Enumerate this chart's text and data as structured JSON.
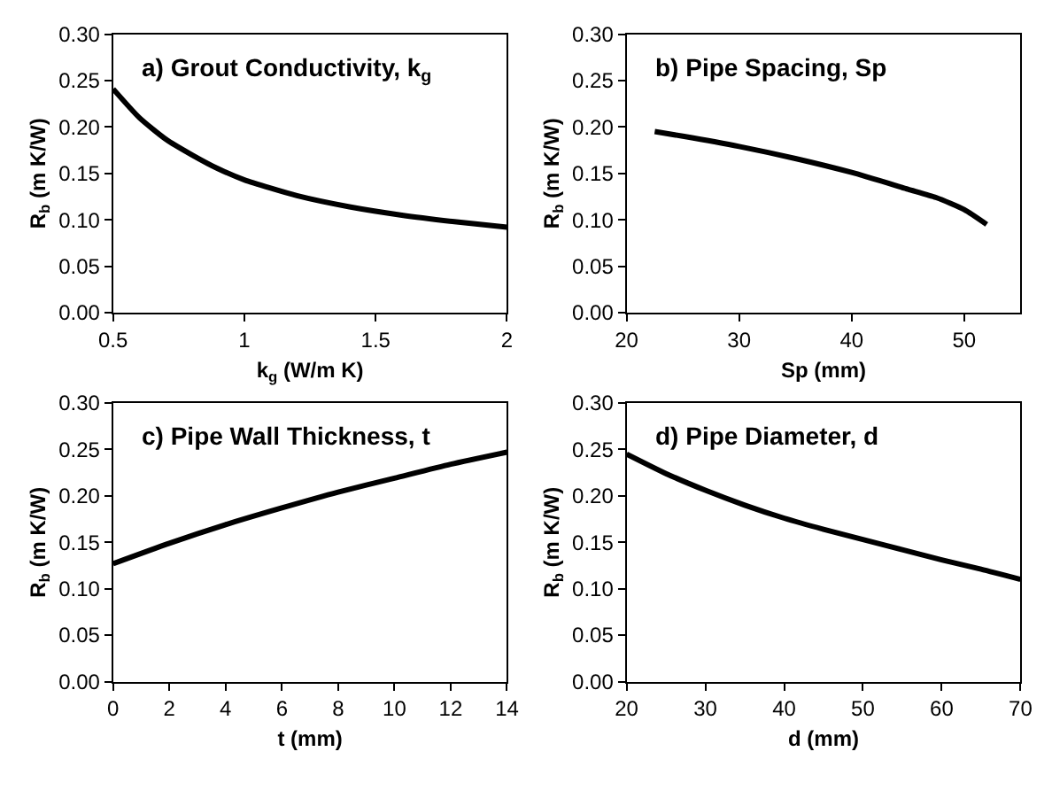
{
  "chart_data": [
    {
      "type": "line",
      "title": "a) Grout Conductivity, k$_{g}$",
      "xlabel": "k$_{g}$ (W/m K)",
      "ylabel": "R$_{b}$ (m K/W)",
      "x": [
        0.5,
        0.6,
        0.7,
        0.8,
        0.9,
        1.0,
        1.2,
        1.4,
        1.6,
        1.8,
        2.0
      ],
      "values": [
        0.241,
        0.21,
        0.187,
        0.17,
        0.155,
        0.143,
        0.126,
        0.114,
        0.105,
        0.098,
        0.092
      ],
      "color": "#000000",
      "xlim": [
        0.5,
        2
      ],
      "xticks": [
        0.5,
        1,
        1.5,
        2
      ],
      "ylim": [
        0,
        0.3
      ],
      "yticks": [
        {
          "value": 0,
          "label": "0.00"
        },
        {
          "value": 0.05,
          "label": "0.05"
        },
        {
          "value": 0.1,
          "label": "0.10"
        },
        {
          "value": 0.15,
          "label": "0.15"
        },
        {
          "value": 0.2,
          "label": "0.20"
        },
        {
          "value": 0.25,
          "label": "0.25"
        },
        {
          "value": 0.3,
          "label": "0.30"
        }
      ],
      "grid": false
    },
    {
      "type": "line",
      "title": "b) Pipe Spacing, Sp",
      "xlabel": "Sp (mm)",
      "ylabel": "R$_{b}$ (m K/W)",
      "x": [
        22.5,
        25,
        30,
        35,
        40,
        45,
        47.5,
        50,
        52
      ],
      "values": [
        0.195,
        0.19,
        0.179,
        0.166,
        0.151,
        0.133,
        0.124,
        0.111,
        0.095
      ],
      "color": "#000000",
      "xlim": [
        20,
        55
      ],
      "xticks": [
        20,
        30,
        40,
        50
      ],
      "ylim": [
        0,
        0.3
      ],
      "yticks": [
        {
          "value": 0,
          "label": "0.00"
        },
        {
          "value": 0.05,
          "label": "0.05"
        },
        {
          "value": 0.1,
          "label": "0.10"
        },
        {
          "value": 0.15,
          "label": "0.15"
        },
        {
          "value": 0.2,
          "label": "0.20"
        },
        {
          "value": 0.25,
          "label": "0.25"
        },
        {
          "value": 0.3,
          "label": "0.30"
        }
      ],
      "grid": false
    },
    {
      "type": "line",
      "title": "c) Pipe Wall Thickness, t",
      "xlabel": "t (mm)",
      "ylabel": "R$_{b}$ (m K/W)",
      "x": [
        0,
        2,
        4,
        6,
        8,
        10,
        12,
        14
      ],
      "values": [
        0.127,
        0.149,
        0.169,
        0.187,
        0.204,
        0.219,
        0.234,
        0.247
      ],
      "color": "#000000",
      "xlim": [
        0,
        14
      ],
      "xticks": [
        0,
        2,
        4,
        6,
        8,
        10,
        12,
        14
      ],
      "ylim": [
        0,
        0.3
      ],
      "yticks": [
        {
          "value": 0,
          "label": "0.00"
        },
        {
          "value": 0.05,
          "label": "0.05"
        },
        {
          "value": 0.1,
          "label": "0.10"
        },
        {
          "value": 0.15,
          "label": "0.15"
        },
        {
          "value": 0.2,
          "label": "0.20"
        },
        {
          "value": 0.25,
          "label": "0.25"
        },
        {
          "value": 0.3,
          "label": "0.30"
        }
      ],
      "grid": false
    },
    {
      "type": "line",
      "title": "d) Pipe Diameter, d",
      "xlabel": "d (mm)",
      "ylabel": "R$_{b}$ (m K/W)",
      "x": [
        20,
        25,
        30,
        35,
        40,
        45,
        50,
        55,
        60,
        65,
        70
      ],
      "values": [
        0.245,
        0.224,
        0.206,
        0.19,
        0.176,
        0.164,
        0.153,
        0.142,
        0.131,
        0.121,
        0.11
      ],
      "color": "#000000",
      "xlim": [
        20,
        70
      ],
      "xticks": [
        20,
        30,
        40,
        50,
        60,
        70
      ],
      "ylim": [
        0,
        0.3
      ],
      "yticks": [
        {
          "value": 0,
          "label": "0.00"
        },
        {
          "value": 0.05,
          "label": "0.05"
        },
        {
          "value": 0.1,
          "label": "0.10"
        },
        {
          "value": 0.15,
          "label": "0.15"
        },
        {
          "value": 0.2,
          "label": "0.20"
        },
        {
          "value": 0.25,
          "label": "0.25"
        },
        {
          "value": 0.3,
          "label": "0.30"
        }
      ],
      "grid": false
    }
  ]
}
